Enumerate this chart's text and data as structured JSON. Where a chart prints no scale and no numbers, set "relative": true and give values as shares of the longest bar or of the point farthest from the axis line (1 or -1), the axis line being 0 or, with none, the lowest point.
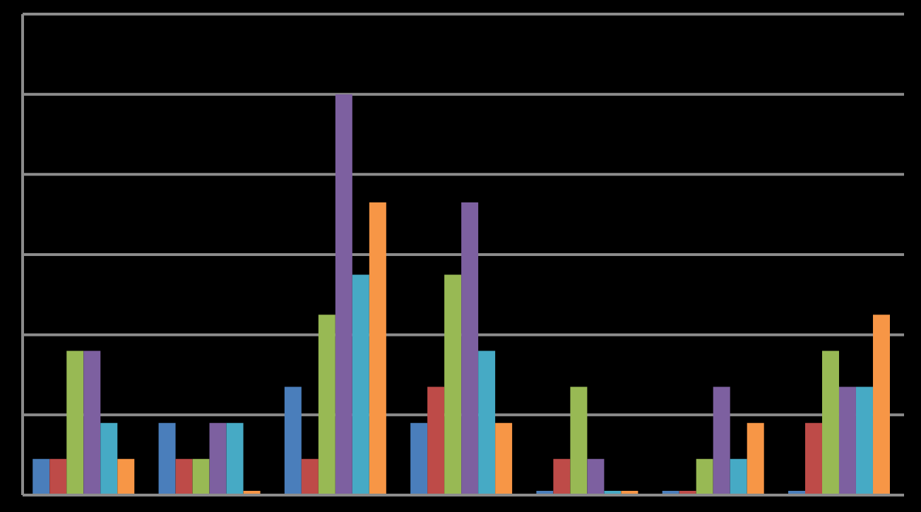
{
  "chart_data": {
    "type": "bar",
    "relative": true,
    "grid": "y",
    "categories": [
      null,
      null,
      null,
      null,
      null,
      null,
      null
    ],
    "series": [
      {
        "color": "#4a7ebb",
        "values": [
          0.09,
          0.18,
          0.27,
          0.18,
          0,
          0,
          0
        ]
      },
      {
        "color": "#be4b48",
        "values": [
          0.09,
          0.09,
          0.09,
          0.27,
          0.09,
          0,
          0.18
        ]
      },
      {
        "color": "#98b954",
        "values": [
          0.36,
          0.09,
          0.45,
          0.55,
          0.27,
          0.09,
          0.36
        ]
      },
      {
        "color": "#7d60a0",
        "values": [
          0.36,
          0.18,
          1,
          0.73,
          0.09,
          0.27,
          0.27
        ]
      },
      {
        "color": "#46aac5",
        "values": [
          0.18,
          0.18,
          0.55,
          0.36,
          0,
          0.09,
          0.27
        ]
      },
      {
        "color": "#f79646",
        "values": [
          0.09,
          0,
          0.73,
          0.18,
          0,
          0.18,
          0.45
        ]
      }
    ]
  }
}
